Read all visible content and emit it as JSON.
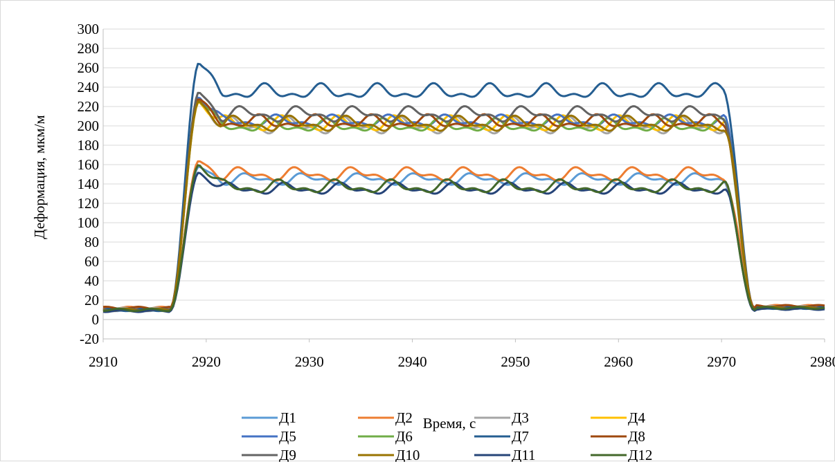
{
  "chart_data": {
    "type": "line",
    "title": "",
    "xlabel": "Время, с",
    "ylabel": "Деформация, мкм/м",
    "xlim": [
      2910,
      2980
    ],
    "ylim": [
      -20,
      300
    ],
    "x_ticks": [
      2910,
      2920,
      2930,
      2940,
      2950,
      2960,
      2970,
      2980
    ],
    "y_ticks": [
      -20,
      0,
      20,
      40,
      60,
      80,
      100,
      120,
      140,
      160,
      180,
      200,
      220,
      240,
      260,
      280,
      300
    ],
    "grid": "horizontal",
    "legend_position": "bottom",
    "series": [
      {
        "name": "Д1",
        "color": "#5B9BD5",
        "base": 10,
        "plateau": 145,
        "peak": 158,
        "amp": 6,
        "phase": 0.3
      },
      {
        "name": "Д2",
        "color": "#ED7D31",
        "base": 12,
        "plateau": 150,
        "peak": 164,
        "amp": 7,
        "phase": 1.1
      },
      {
        "name": "Д3",
        "color": "#A5A5A5",
        "base": 11,
        "plateau": 200,
        "peak": 228,
        "amp": 9,
        "phase": 2.0
      },
      {
        "name": "Д4",
        "color": "#FFC000",
        "base": 10,
        "plateau": 202,
        "peak": 225,
        "amp": 8,
        "phase": 2.7
      },
      {
        "name": "Д5",
        "color": "#4472C4",
        "base": 10,
        "plateau": 205,
        "peak": 230,
        "amp": 6,
        "phase": 3.4
      },
      {
        "name": "Д6",
        "color": "#70AD47",
        "base": 10,
        "plateau": 200,
        "peak": 226,
        "amp": 7,
        "phase": 4.1
      },
      {
        "name": "Д7",
        "color": "#255E91",
        "base": 10,
        "plateau": 235,
        "peak": 265,
        "amp": 8,
        "phase": 4.8
      },
      {
        "name": "Д8",
        "color": "#9E480E",
        "base": 12,
        "plateau": 204,
        "peak": 228,
        "amp": 7,
        "phase": 5.5
      },
      {
        "name": "Д9",
        "color": "#636363",
        "base": 10,
        "plateau": 212,
        "peak": 235,
        "amp": 8,
        "phase": 0.9
      },
      {
        "name": "Д10",
        "color": "#997300",
        "base": 10,
        "plateau": 202,
        "peak": 226,
        "amp": 8,
        "phase": 1.7
      },
      {
        "name": "Д11",
        "color": "#264478",
        "base": 9,
        "plateau": 135,
        "peak": 152,
        "amp": 6,
        "phase": 2.4
      },
      {
        "name": "Д12",
        "color": "#43682B",
        "base": 10,
        "plateau": 137,
        "peak": 160,
        "amp": 7,
        "phase": 3.1
      }
    ]
  }
}
